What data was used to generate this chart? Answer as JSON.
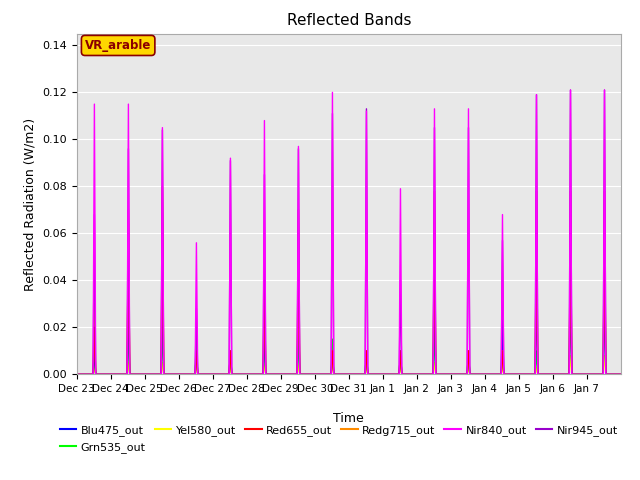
{
  "title": "Reflected Bands",
  "xlabel": "Time",
  "ylabel": "Reflected Radiation (W/m2)",
  "ylim": [
    0,
    0.145
  ],
  "yticks": [
    0.0,
    0.02,
    0.04,
    0.06,
    0.08,
    0.1,
    0.12,
    0.14
  ],
  "annotation_text": "VR_arable",
  "annotation_color": "#8B0000",
  "annotation_bg": "#FFD700",
  "plot_bg": "#E8E8E8",
  "bands": [
    "Blu475_out",
    "Grn535_out",
    "Yel580_out",
    "Red655_out",
    "Redg715_out",
    "Nir840_out",
    "Nir945_out"
  ],
  "colors": [
    "#0000FF",
    "#00FF00",
    "#FFFF00",
    "#FF0000",
    "#FF8C00",
    "#FF00FF",
    "#9900CC"
  ],
  "linewidths": [
    1.0,
    1.0,
    1.0,
    1.0,
    1.0,
    1.0,
    1.0
  ],
  "n_days": 16,
  "points_per_day": 288,
  "day_labels": [
    "Dec 23",
    "Dec 24",
    "Dec 25",
    "Dec 26",
    "Dec 27",
    "Dec 28",
    "Dec 29",
    "Dec 30",
    "Dec 31",
    "Jan 1",
    "Jan 2",
    "Jan 3",
    "Jan 4",
    "Jan 5",
    "Jan 6",
    "Jan 7"
  ],
  "peak_values": {
    "Blu475_out": [
      0.01,
      0.031,
      0.036,
      0.01,
      0.01,
      0.02,
      0.03,
      0.01,
      0.01,
      0.01,
      0.036,
      0.01,
      0.023,
      0.035,
      0.035,
      0.035
    ],
    "Grn535_out": [
      0.01,
      0.019,
      0.019,
      0.017,
      0.01,
      0.015,
      0.015,
      0.015,
      0.01,
      0.01,
      0.018,
      0.01,
      0.01,
      0.01,
      0.06,
      0.06
    ],
    "Yel580_out": [
      0.003,
      0.005,
      0.005,
      0.004,
      0.003,
      0.004,
      0.004,
      0.004,
      0.003,
      0.003,
      0.005,
      0.003,
      0.003,
      0.003,
      0.008,
      0.008
    ],
    "Red655_out": [
      0.02,
      0.07,
      0.08,
      0.01,
      0.01,
      0.045,
      0.07,
      0.01,
      0.01,
      0.01,
      0.078,
      0.01,
      0.01,
      0.078,
      0.078,
      0.078
    ],
    "Redg715_out": [
      0.03,
      0.065,
      0.065,
      0.01,
      0.01,
      0.04,
      0.04,
      0.01,
      0.01,
      0.01,
      0.065,
      0.01,
      0.01,
      0.065,
      0.065,
      0.065
    ],
    "Nir840_out": [
      0.115,
      0.115,
      0.105,
      0.056,
      0.092,
      0.108,
      0.097,
      0.12,
      0.112,
      0.079,
      0.113,
      0.113,
      0.068,
      0.119,
      0.121,
      0.121
    ],
    "Nir945_out": [
      0.068,
      0.096,
      0.104,
      0.028,
      0.091,
      0.085,
      0.096,
      0.111,
      0.113,
      0.04,
      0.105,
      0.105,
      0.057,
      0.119,
      0.121,
      0.121
    ]
  }
}
